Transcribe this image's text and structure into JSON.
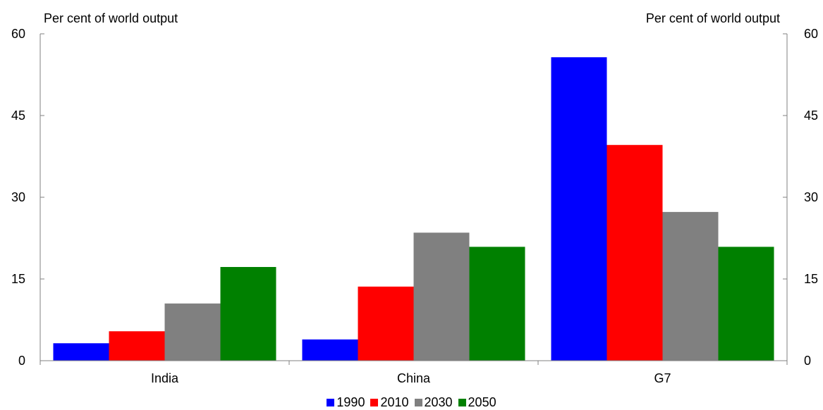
{
  "chart_data": {
    "type": "bar",
    "ylabel_left": "Per cent of world output",
    "ylabel_right": "Per cent of world output",
    "ylim": [
      0,
      60
    ],
    "yticks": [
      "0",
      "15",
      "30",
      "45",
      "60"
    ],
    "categories": [
      "India",
      "China",
      "G7"
    ],
    "series": [
      {
        "name": "1990",
        "color": "#0000ff",
        "values": [
          3.2,
          3.9,
          55.7
        ]
      },
      {
        "name": "2010",
        "color": "#ff0000",
        "values": [
          5.4,
          13.6,
          39.6
        ]
      },
      {
        "name": "2030",
        "color": "#808080",
        "values": [
          10.5,
          23.5,
          27.3
        ]
      },
      {
        "name": "2050",
        "color": "#008000",
        "values": [
          17.2,
          20.9,
          20.9
        ]
      }
    ],
    "legend_position": "bottom-center",
    "grid": false
  }
}
